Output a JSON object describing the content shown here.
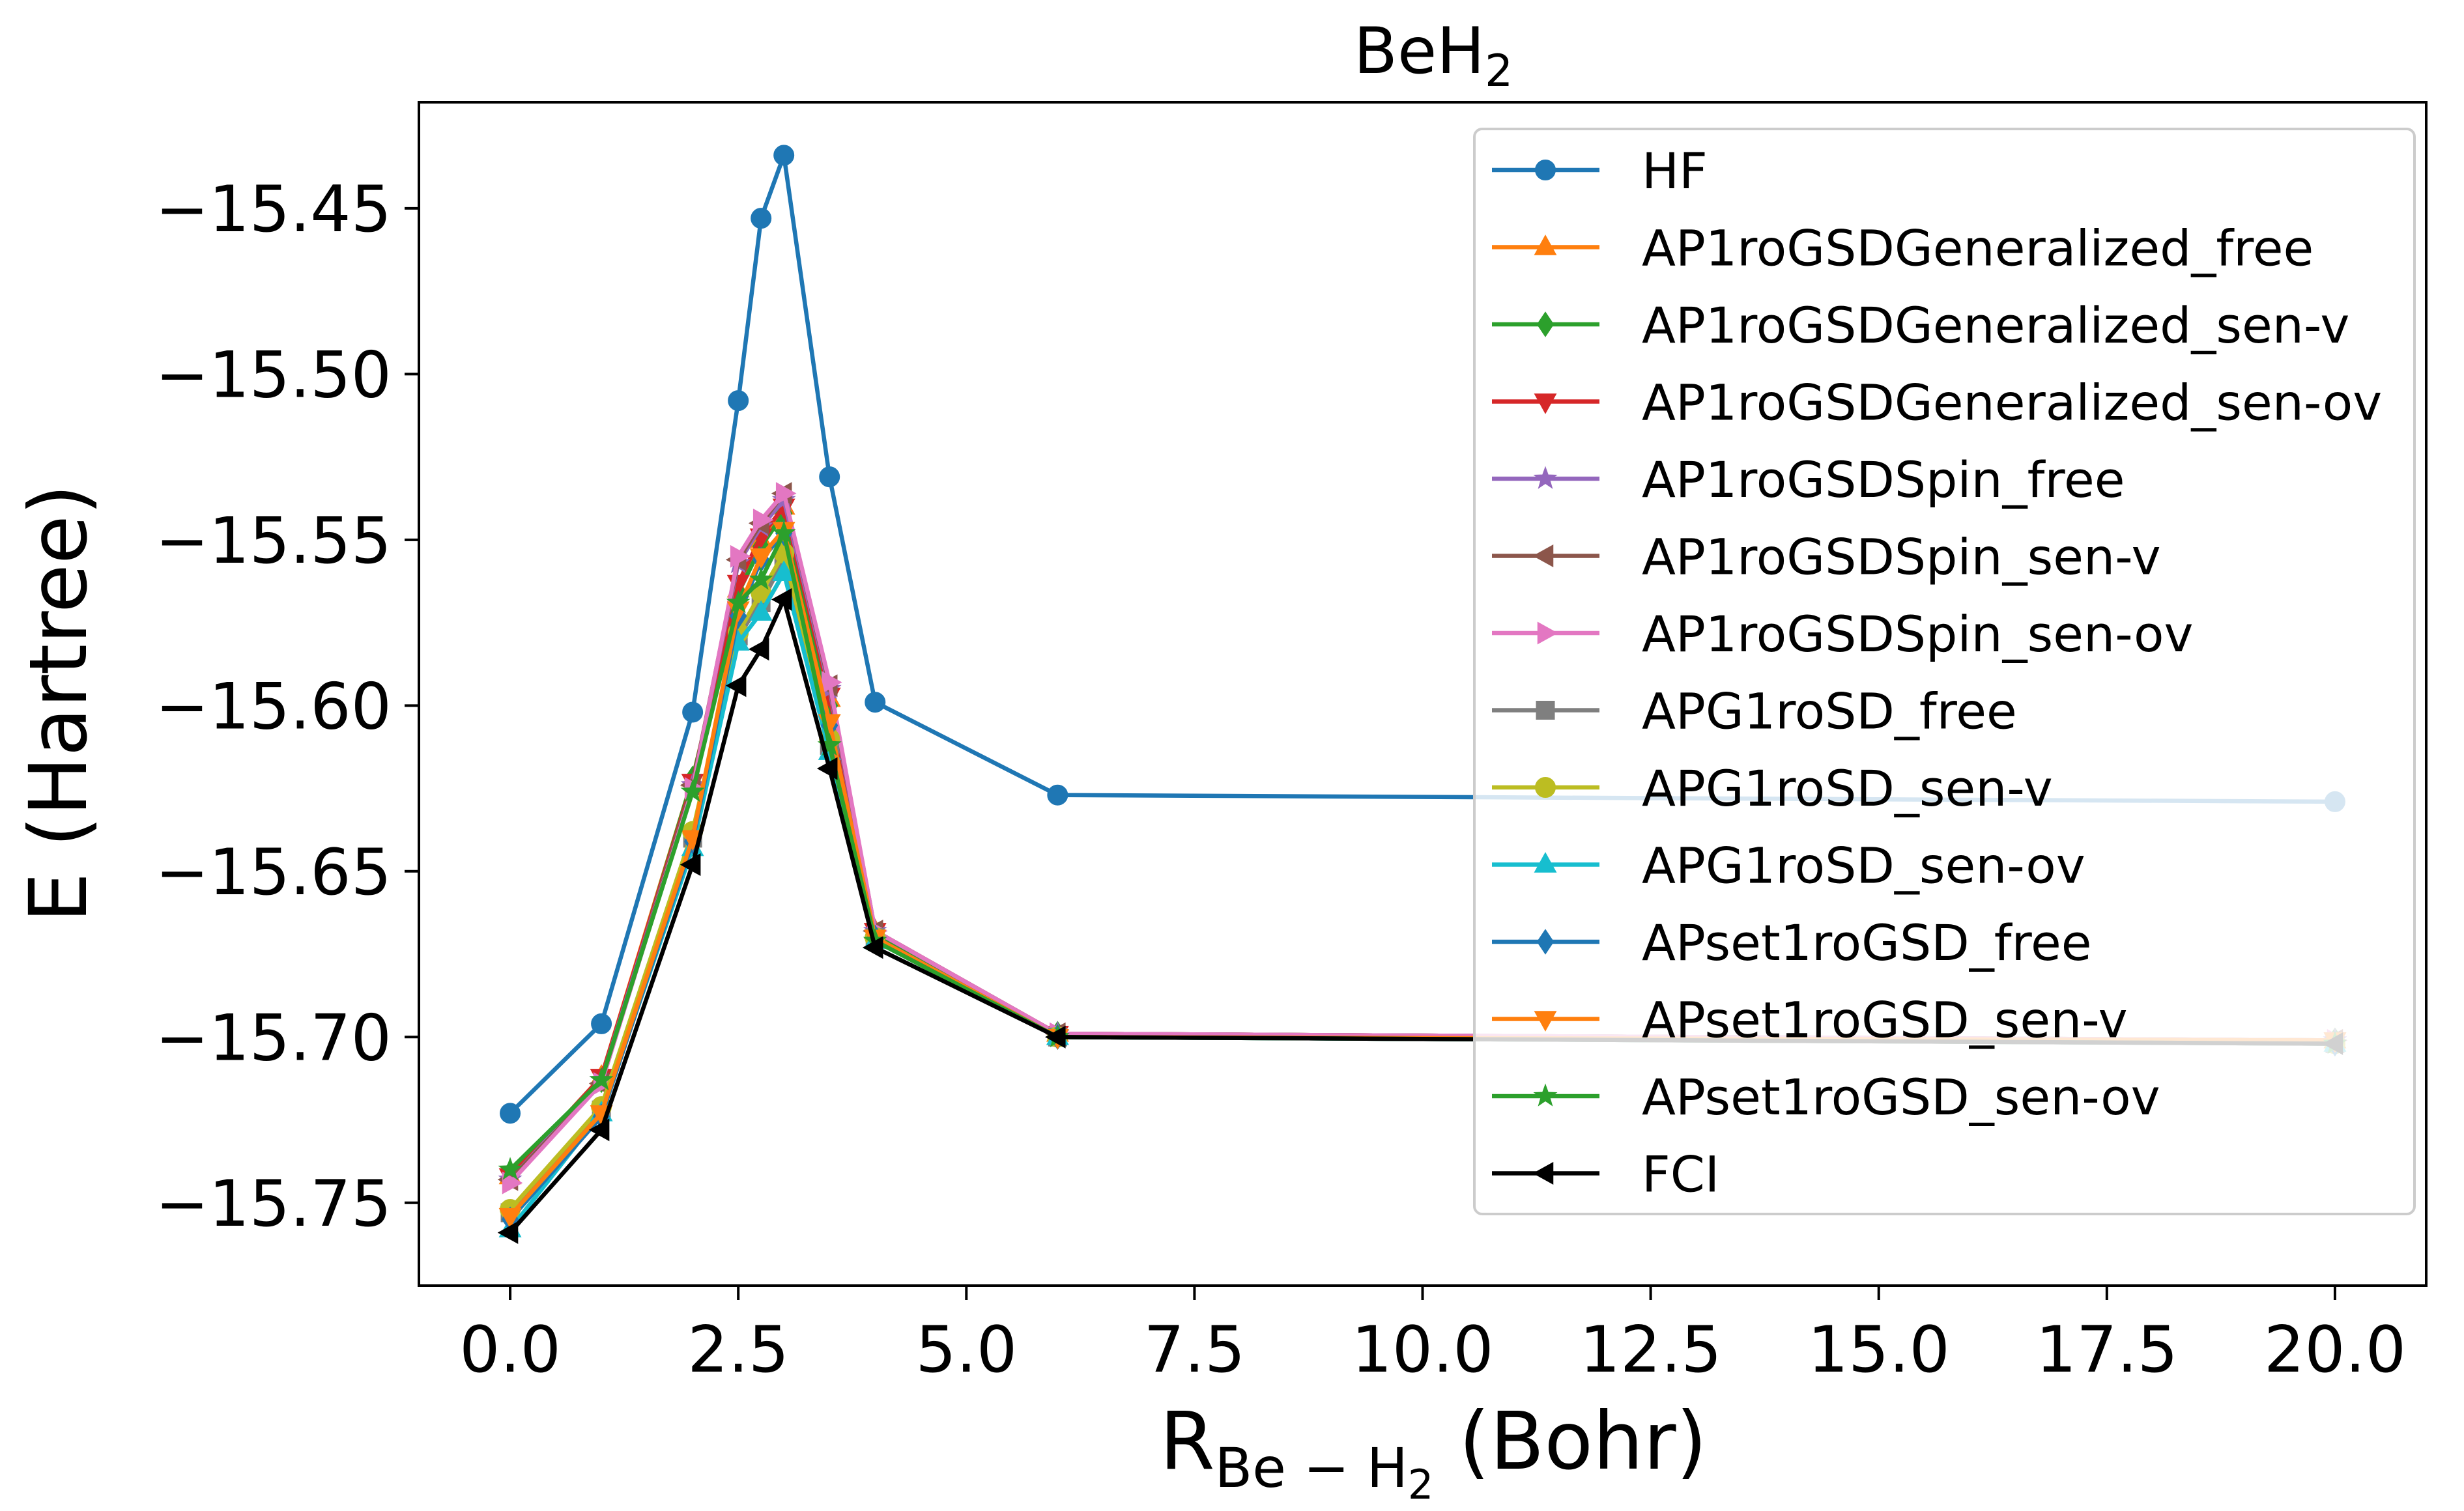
{
  "chart_data": {
    "type": "line",
    "title": {
      "main": "BeH",
      "sub": "2"
    },
    "xlabel": {
      "main": "R",
      "sub": "Be − H",
      "subsub": "2",
      "rest": " (Bohr)"
    },
    "ylabel": "E (Hartree)",
    "xlim": [
      -1.0,
      21.0
    ],
    "ylim": [
      -15.775,
      -15.418
    ],
    "xticks": [
      0.0,
      2.5,
      5.0,
      7.5,
      10.0,
      12.5,
      15.0,
      17.5,
      20.0
    ],
    "xtick_labels": [
      "0.0",
      "2.5",
      "5.0",
      "7.5",
      "10.0",
      "12.5",
      "15.0",
      "17.5",
      "20.0"
    ],
    "yticks": [
      -15.75,
      -15.7,
      -15.65,
      -15.6,
      -15.55,
      -15.5,
      -15.45
    ],
    "ytick_labels": [
      "−15.75",
      "−15.70",
      "−15.65",
      "−15.60",
      "−15.55",
      "−15.50",
      "−15.45"
    ],
    "grid": false,
    "legend_position": "top-right",
    "x": [
      0.0,
      1.0,
      2.0,
      2.5,
      2.75,
      3.0,
      3.5,
      4.0,
      6.0,
      20.0
    ],
    "series": [
      {
        "name": "HF",
        "color": "#1f77b4",
        "marker": "circle",
        "values": [
          -15.723,
          -15.696,
          -15.602,
          -15.508,
          -15.453,
          -15.434,
          -15.531,
          -15.599,
          -15.627,
          -15.629
        ]
      },
      {
        "name": "AP1roGSDGeneralized_free",
        "color": "#ff7f0e",
        "marker": "triangle-up",
        "values": [
          -15.742,
          -15.712,
          -15.622,
          -15.565,
          -15.55,
          -15.54,
          -15.598,
          -15.668,
          -15.699,
          -15.701
        ]
      },
      {
        "name": "AP1roGSDGeneralized_sen-v",
        "color": "#2ca02c",
        "marker": "diamond",
        "values": [
          -15.741,
          -15.713,
          -15.622,
          -15.566,
          -15.552,
          -15.542,
          -15.6,
          -15.669,
          -15.699,
          -15.701
        ]
      },
      {
        "name": "AP1roGSDGeneralized_sen-ov",
        "color": "#d62728",
        "marker": "triangle-down",
        "values": [
          -15.742,
          -15.712,
          -15.623,
          -15.563,
          -15.549,
          -15.54,
          -15.597,
          -15.668,
          -15.699,
          -15.701
        ]
      },
      {
        "name": "AP1roGSDSpin_free",
        "color": "#9467bd",
        "marker": "star",
        "values": [
          -15.743,
          -15.713,
          -15.624,
          -15.557,
          -15.546,
          -15.538,
          -15.595,
          -15.668,
          -15.699,
          -15.701
        ]
      },
      {
        "name": "AP1roGSDSpin_sen-v",
        "color": "#8c564b",
        "marker": "triangle-left",
        "values": [
          -15.743,
          -15.714,
          -15.624,
          -15.556,
          -15.545,
          -15.536,
          -15.594,
          -15.668,
          -15.699,
          -15.701
        ]
      },
      {
        "name": "AP1roGSDSpin_sen-ov",
        "color": "#e377c2",
        "marker": "triangle-right",
        "values": [
          -15.744,
          -15.714,
          -15.625,
          -15.555,
          -15.544,
          -15.536,
          -15.593,
          -15.668,
          -15.699,
          -15.701
        ]
      },
      {
        "name": "APG1roSD_free",
        "color": "#7f7f7f",
        "marker": "square",
        "values": [
          -15.753,
          -15.722,
          -15.64,
          -15.579,
          -15.569,
          -15.556,
          -15.612,
          -15.67,
          -15.7,
          -15.702
        ]
      },
      {
        "name": "APG1roSD_sen-v",
        "color": "#bcbd22",
        "marker": "circle",
        "values": [
          -15.752,
          -15.721,
          -15.638,
          -15.578,
          -15.566,
          -15.554,
          -15.61,
          -15.67,
          -15.7,
          -15.702
        ]
      },
      {
        "name": "APG1roSD_sen-ov",
        "color": "#17becf",
        "marker": "triangle-up",
        "values": [
          -15.758,
          -15.723,
          -15.643,
          -15.581,
          -15.572,
          -15.56,
          -15.614,
          -15.671,
          -15.7,
          -15.702
        ]
      },
      {
        "name": "APset1roGSD_free",
        "color": "#1f77b4",
        "marker": "diamond",
        "values": [
          -15.755,
          -15.724,
          -15.641,
          -15.573,
          -15.556,
          -15.548,
          -15.606,
          -15.67,
          -15.7,
          -15.702
        ]
      },
      {
        "name": "APset1roGSD_sen-v",
        "color": "#ff7f0e",
        "marker": "triangle-down",
        "values": [
          -15.754,
          -15.723,
          -15.64,
          -15.571,
          -15.555,
          -15.547,
          -15.605,
          -15.67,
          -15.7,
          -15.701
        ]
      },
      {
        "name": "APset1roGSD_sen-ov",
        "color": "#2ca02c",
        "marker": "star",
        "values": [
          -15.74,
          -15.713,
          -15.626,
          -15.569,
          -15.562,
          -15.548,
          -15.612,
          -15.671,
          -15.7,
          -15.702
        ]
      },
      {
        "name": "FCI",
        "color": "#000000",
        "marker": "triangle-left",
        "values": [
          -15.759,
          -15.728,
          -15.648,
          -15.594,
          -15.583,
          -15.568,
          -15.619,
          -15.673,
          -15.7,
          -15.702
        ]
      }
    ]
  }
}
